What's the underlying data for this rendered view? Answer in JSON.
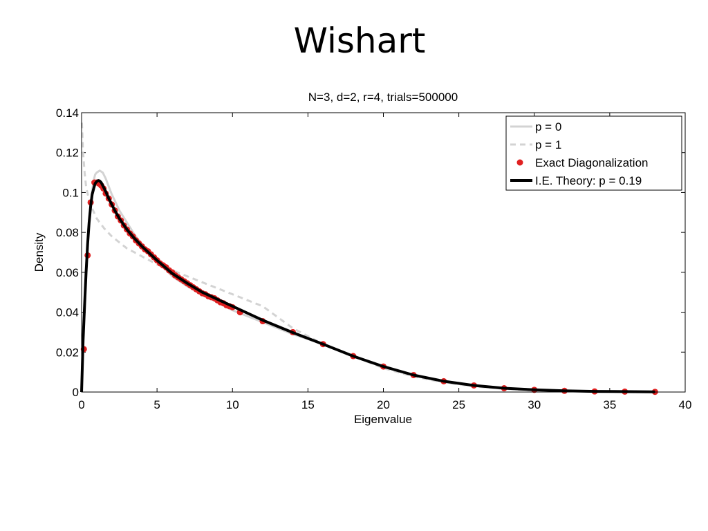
{
  "slide": {
    "title": "Wishart"
  },
  "chart_data": {
    "type": "line",
    "title": "N=3, d=2, r=4, trials=500000",
    "xlabel": "Eigenvalue",
    "ylabel": "Density",
    "xlim": [
      0,
      40
    ],
    "ylim": [
      0,
      0.14
    ],
    "xticks": [
      0,
      5,
      10,
      15,
      20,
      25,
      30,
      35,
      40
    ],
    "yticks": [
      0,
      0.02,
      0.04,
      0.06,
      0.08,
      0.1,
      0.12,
      0.14
    ],
    "ytick_labels": [
      "0",
      "0.02",
      "0.04",
      "0.06",
      "0.08",
      "0.1",
      "0.12",
      "0.14"
    ],
    "grid": false,
    "legend_position": "top-right",
    "series": [
      {
        "name": "p = 0",
        "style": "solid",
        "color": "#d3d3d3",
        "x": [
          0,
          0.1,
          0.2,
          0.3,
          0.4,
          0.5,
          0.6,
          0.7,
          0.8,
          0.9,
          1.0,
          1.2,
          1.4,
          1.6,
          1.8,
          2.0,
          2.2,
          2.5,
          3,
          3.5,
          4,
          5,
          6,
          7,
          8,
          9,
          10,
          12,
          14,
          16,
          18,
          20,
          22,
          24,
          26,
          28,
          30,
          32,
          34,
          36,
          38
        ],
        "y": [
          0,
          0.027,
          0.045,
          0.061,
          0.075,
          0.086,
          0.095,
          0.101,
          0.106,
          0.109,
          0.11,
          0.111,
          0.11,
          0.107,
          0.103,
          0.099,
          0.096,
          0.091,
          0.085,
          0.079,
          0.074,
          0.066,
          0.058,
          0.053,
          0.049,
          0.045,
          0.041,
          0.035,
          0.029,
          0.024,
          0.018,
          0.013,
          0.0085,
          0.005,
          0.003,
          0.0017,
          0.001,
          0.0005,
          0.0002,
          0.0001,
          0.0
        ],
        "width": 3
      },
      {
        "name": "p = 1",
        "style": "dashed",
        "color": "#d3d3d3",
        "x": [
          0.02,
          0.1,
          0.2,
          0.3,
          0.5,
          0.7,
          1.0,
          1.5,
          2.0,
          3,
          4,
          5,
          6,
          7,
          8,
          9,
          10,
          11,
          12,
          14,
          16,
          18,
          20,
          22,
          24,
          26,
          28,
          30,
          32,
          34,
          36,
          38
        ],
        "y": [
          0.135,
          0.12,
          0.11,
          0.103,
          0.096,
          0.092,
          0.087,
          0.082,
          0.078,
          0.072,
          0.068,
          0.064,
          0.061,
          0.058,
          0.055,
          0.052,
          0.049,
          0.046,
          0.043,
          0.032,
          0.024,
          0.018,
          0.012,
          0.0078,
          0.0048,
          0.0028,
          0.0016,
          0.0009,
          0.0005,
          0.0002,
          0.0001,
          0.0
        ],
        "width": 3
      },
      {
        "name": "Exact Diagonalization",
        "style": "markers",
        "color": "#e02020",
        "x": [
          0.15,
          0.4,
          0.6,
          0.85,
          1.0,
          1.15,
          1.3,
          1.45,
          1.6,
          1.8,
          2.0,
          2.2,
          2.4,
          2.6,
          2.8,
          3.0,
          3.2,
          3.4,
          3.6,
          3.8,
          4.0,
          4.2,
          4.4,
          4.6,
          4.8,
          5.0,
          5.2,
          5.4,
          5.6,
          5.8,
          6.0,
          6.2,
          6.4,
          6.6,
          6.8,
          7.0,
          7.2,
          7.4,
          7.6,
          7.8,
          8.0,
          8.2,
          8.4,
          8.6,
          8.8,
          9.0,
          9.2,
          9.4,
          9.6,
          9.8,
          10.0,
          10.5,
          12,
          14,
          16,
          18,
          20,
          22,
          24,
          26,
          28,
          30,
          32,
          34,
          36,
          38
        ],
        "y": [
          0.0215,
          0.0685,
          0.095,
          0.105,
          0.105,
          0.1045,
          0.1035,
          0.102,
          0.0995,
          0.097,
          0.094,
          0.091,
          0.088,
          0.086,
          0.0835,
          0.0815,
          0.0795,
          0.078,
          0.076,
          0.0745,
          0.073,
          0.0715,
          0.0705,
          0.069,
          0.0675,
          0.066,
          0.0645,
          0.0635,
          0.0625,
          0.061,
          0.06,
          0.0585,
          0.0575,
          0.0565,
          0.0555,
          0.0545,
          0.0535,
          0.0525,
          0.0515,
          0.0505,
          0.0495,
          0.049,
          0.048,
          0.0475,
          0.047,
          0.046,
          0.045,
          0.0445,
          0.0435,
          0.043,
          0.0425,
          0.04,
          0.0355,
          0.03,
          0.024,
          0.018,
          0.0128,
          0.0085,
          0.0054,
          0.0033,
          0.0019,
          0.0011,
          0.0006,
          0.0003,
          0.0002,
          0.0001
        ]
      },
      {
        "name": "I.E. Theory: p = 0.19",
        "style": "solid",
        "color": "#000000",
        "x": [
          0,
          0.1,
          0.2,
          0.3,
          0.4,
          0.5,
          0.6,
          0.7,
          0.8,
          0.9,
          1.0,
          1.1,
          1.2,
          1.3,
          1.4,
          1.6,
          1.8,
          2.0,
          2.2,
          2.5,
          3,
          3.5,
          4,
          5,
          6,
          7,
          8,
          9,
          10,
          12,
          14,
          16,
          18,
          20,
          22,
          24,
          26,
          28,
          30,
          32,
          34,
          36,
          38
        ],
        "y": [
          0,
          0.026,
          0.044,
          0.06,
          0.074,
          0.085,
          0.093,
          0.099,
          0.102,
          0.1045,
          0.1055,
          0.106,
          0.1058,
          0.105,
          0.1035,
          0.1005,
          0.097,
          0.094,
          0.091,
          0.087,
          0.0815,
          0.077,
          0.073,
          0.066,
          0.0595,
          0.0545,
          0.05,
          0.0465,
          0.043,
          0.036,
          0.0298,
          0.024,
          0.018,
          0.0128,
          0.0085,
          0.0054,
          0.0033,
          0.0019,
          0.0011,
          0.0006,
          0.0003,
          0.0002,
          0.0001
        ],
        "width": 4
      }
    ]
  }
}
